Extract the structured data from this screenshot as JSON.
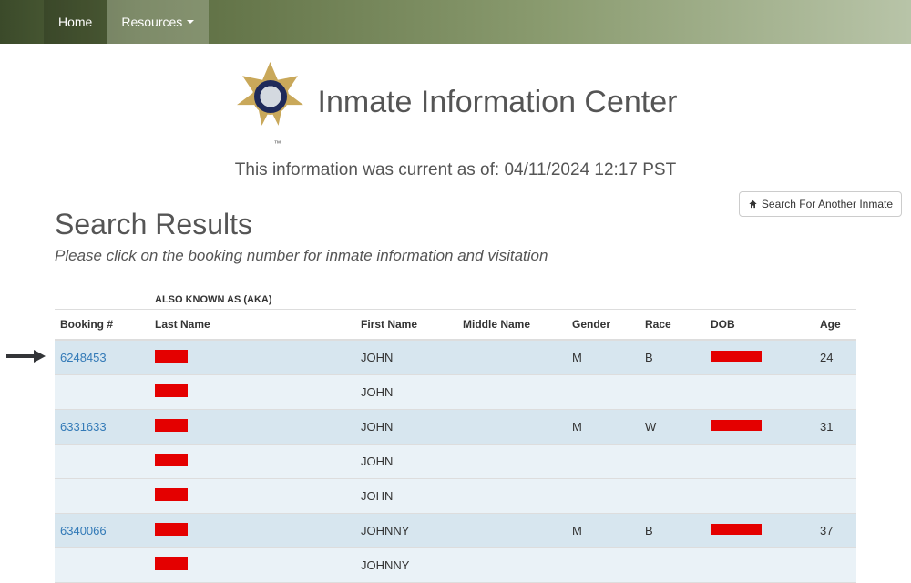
{
  "nav": {
    "home": "Home",
    "resources": "Resources"
  },
  "header": {
    "title": "Inmate Information Center",
    "tm": "™",
    "timestamp": "This information was current as of: 04/11/2024 12:17 PST"
  },
  "toolbar": {
    "search_again": "Search For Another Inmate"
  },
  "results": {
    "title": "Search Results",
    "subtitle": "Please click on the booking number for inmate information and visitation",
    "aka_label": "ALSO KNOWN AS (AKA)",
    "columns": {
      "booking": "Booking #",
      "last": "Last Name",
      "first": "First Name",
      "middle": "Middle Name",
      "gender": "Gender",
      "race": "Race",
      "dob": "DOB",
      "age": "Age"
    },
    "rows": [
      {
        "type": "primary",
        "stripe": 0,
        "arrow": true,
        "booking": "6248453",
        "first": "JOHN",
        "gender": "M",
        "race": "B",
        "age": "24",
        "last_redacted": true,
        "dob_redacted": true
      },
      {
        "type": "aka",
        "stripe": 1,
        "first": "JOHN",
        "last_redacted": true
      },
      {
        "type": "primary",
        "stripe": 0,
        "booking": "6331633",
        "first": "JOHN",
        "gender": "M",
        "race": "W",
        "age": "31",
        "last_redacted": true,
        "dob_redacted": true
      },
      {
        "type": "aka",
        "stripe": 1,
        "first": "JOHN",
        "last_redacted": true
      },
      {
        "type": "aka",
        "stripe": 1,
        "first": "JOHN",
        "last_redacted": true
      },
      {
        "type": "primary",
        "stripe": 0,
        "booking": "6340066",
        "first": "JOHNNY",
        "gender": "M",
        "race": "B",
        "age": "37",
        "last_redacted": true,
        "dob_redacted": true
      },
      {
        "type": "aka",
        "stripe": 1,
        "first": "JOHNNY",
        "last_redacted": true
      }
    ]
  },
  "colors": {
    "link": "#337ab7",
    "redaction": "#e40000",
    "row_primary": "#d7e6ef",
    "row_alt": "#eaf2f7"
  }
}
